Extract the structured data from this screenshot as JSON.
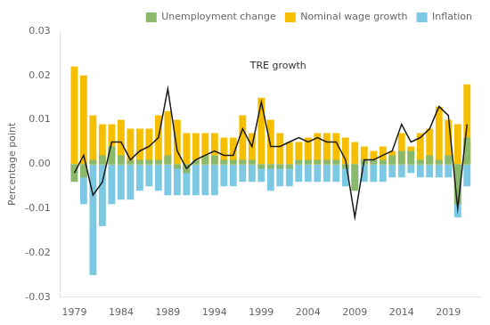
{
  "chart_data": {
    "type": "bar",
    "x": [
      1979,
      1980,
      1981,
      1982,
      1983,
      1984,
      1985,
      1986,
      1987,
      1988,
      1989,
      1990,
      1991,
      1992,
      1993,
      1994,
      1995,
      1996,
      1997,
      1998,
      1999,
      2000,
      2001,
      2002,
      2003,
      2004,
      2005,
      2006,
      2007,
      2008,
      2009,
      2010,
      2011,
      2012,
      2013,
      2014,
      2015,
      2016,
      2017,
      2018,
      2019,
      2020,
      2021
    ],
    "series": [
      {
        "name": "Inflation",
        "color": "#7dc8e3",
        "values": [
          -0.002,
          -0.009,
          -0.025,
          -0.014,
          -0.009,
          -0.008,
          -0.008,
          -0.006,
          -0.005,
          -0.006,
          -0.007,
          -0.007,
          -0.007,
          -0.007,
          -0.007,
          -0.007,
          -0.005,
          -0.005,
          -0.004,
          -0.004,
          -0.004,
          -0.006,
          -0.005,
          -0.005,
          -0.004,
          -0.004,
          -0.004,
          -0.004,
          -0.004,
          -0.005,
          -0.004,
          -0.004,
          -0.004,
          -0.004,
          -0.003,
          -0.003,
          -0.002,
          -0.003,
          -0.003,
          -0.003,
          -0.003,
          -0.012,
          -0.005
        ]
      },
      {
        "name": "Nominal wage growth",
        "color": "#f5bf00",
        "values": [
          0.022,
          0.02,
          0.011,
          0.009,
          0.009,
          0.01,
          0.008,
          0.008,
          0.008,
          0.011,
          0.012,
          0.01,
          0.007,
          0.007,
          0.007,
          0.007,
          0.006,
          0.006,
          0.011,
          0.007,
          0.015,
          0.01,
          0.007,
          0.005,
          0.005,
          0.006,
          0.007,
          0.007,
          0.007,
          0.006,
          0.005,
          0.004,
          0.003,
          0.004,
          0.003,
          0.007,
          0.004,
          0.007,
          0.008,
          0.013,
          0.01,
          0.009,
          0.018
        ]
      },
      {
        "name": "Unemployment change",
        "color": "#8ab96b",
        "values": [
          -0.004,
          -0.003,
          0.001,
          0.002,
          0.004,
          0.002,
          0.001,
          0.001,
          0.001,
          0.001,
          0.002,
          -0.001,
          -0.002,
          0.001,
          0.002,
          0.002,
          0.001,
          0.001,
          0.001,
          0.001,
          -0.001,
          -0.001,
          -0.001,
          -0.001,
          0.001,
          0.001,
          0.001,
          0.001,
          0.001,
          -0.001,
          -0.006,
          0.001,
          0.001,
          0.001,
          0.002,
          0.003,
          0.003,
          0.001,
          0.002,
          0.001,
          0.002,
          -0.009,
          0.006
        ]
      },
      {
        "type": "line",
        "color": "#1a1a1a",
        "values": [
          -0.002,
          0.002,
          -0.007,
          -0.004,
          0.005,
          0.005,
          0.001,
          0.003,
          0.004,
          0.006,
          0.017,
          0.003,
          -0.001,
          0.001,
          0.002,
          0.003,
          0.002,
          0.002,
          0.008,
          0.004,
          0.014,
          0.004,
          0.004,
          0.005,
          0.006,
          0.005,
          0.006,
          0.005,
          0.005,
          0.001,
          -0.012,
          0.001,
          0.001,
          0.002,
          0.003,
          0.009,
          0.005,
          0.006,
          0.008,
          0.013,
          0.011,
          -0.01,
          0.009
        ]
      }
    ],
    "xlim": [
      1977.5,
      2022.5
    ],
    "xticks": [
      1979,
      1984,
      1989,
      1994,
      1999,
      2004,
      2009,
      2014,
      2019
    ],
    "ylim": [
      -0.03,
      0.03
    ],
    "yticks": [
      -0.03,
      -0.02,
      -0.01,
      {
        "value": 0,
        "label": "0.00"
      },
      0.01,
      0.02,
      0.03
    ],
    "ylabel": "Percentage point",
    "annotations": [
      {
        "text": "TRE growth",
        "x": 1997.8,
        "y": 0.021
      }
    ],
    "legend": "upper right",
    "grid": false
  }
}
